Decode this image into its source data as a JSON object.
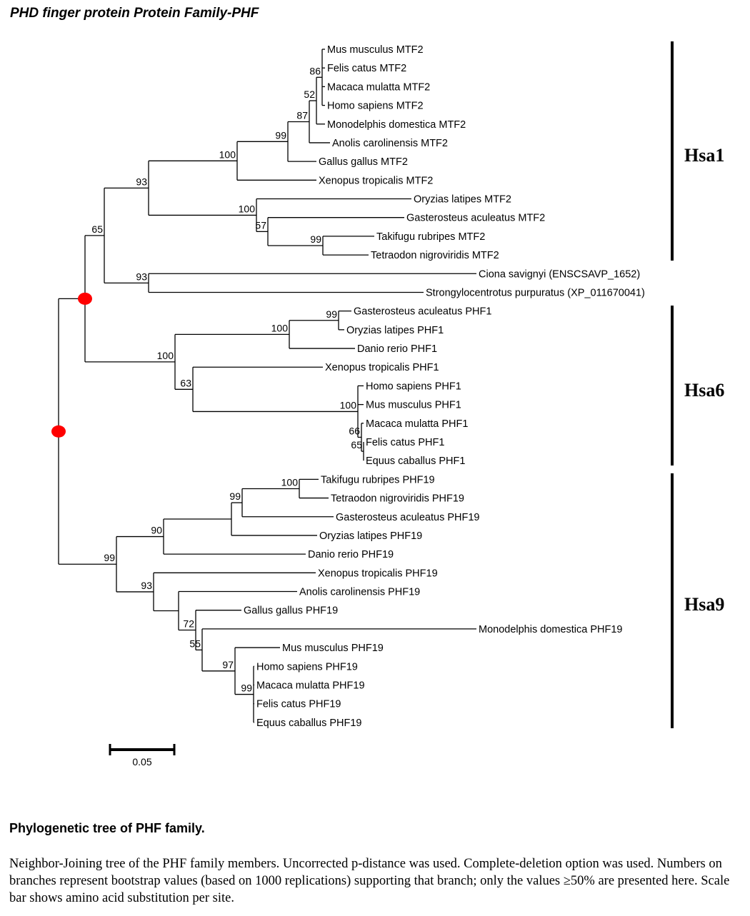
{
  "title": "PHD finger protein Protein Family-PHF",
  "tree": {
    "leaves": [
      "Mus musculus MTF2",
      "Felis catus MTF2",
      "Macaca mulatta MTF2",
      "Homo sapiens MTF2",
      "Monodelphis domestica MTF2",
      "Anolis carolinensis MTF2",
      "Gallus gallus MTF2",
      "Xenopus tropicalis MTF2",
      "Oryzias latipes MTF2",
      "Gasterosteus aculeatus MTF2",
      "Takifugu rubripes MTF2",
      "Tetraodon nigroviridis MTF2",
      "Ciona savignyi (ENSCSAVP_1652)",
      "Strongylocentrotus purpuratus (XP_011670041)",
      "Gasterosteus aculeatus PHF1",
      "Oryzias latipes PHF1",
      "Danio rerio PHF1",
      "Xenopus tropicalis PHF1",
      "Homo sapiens PHF1",
      "Mus musculus PHF1",
      "Macaca mulatta PHF1",
      "Felis catus PHF1",
      "Equus caballus PHF1",
      "Takifugu rubripes PHF19",
      "Tetraodon nigroviridis PHF19",
      "Gasterosteus aculeatus PHF19",
      "Oryzias latipes PHF19",
      "Danio rerio PHF19",
      "Xenopus tropicalis PHF19",
      "Anolis carolinensis PHF19",
      "Gallus gallus PHF19",
      "Monodelphis domestica PHF19",
      "Mus musculus PHF19",
      "Homo sapiens PHF19",
      "Macaca mulatta PHF19",
      "Felis catus PHF19",
      "Equus caballus PHF19"
    ],
    "bootstrap_values": [
      "86",
      "52",
      "87",
      "99",
      "100",
      "93",
      "100",
      "57",
      "99",
      "65",
      "93",
      "99",
      "100",
      "100",
      "63",
      "100",
      "66",
      "65",
      "100",
      "99",
      "90",
      "99",
      "93",
      "72",
      "55",
      "97",
      "99"
    ],
    "groups": [
      "Hsa1",
      "Hsa6",
      "Hsa9"
    ],
    "scale_bar_label": "0.05",
    "node_marker_color": "#ff0000"
  },
  "caption": {
    "title": "Phylogenetic tree of PHF family.",
    "text": "Neighbor-Joining tree of the PHF family members. Uncorrected p-distance was used. Complete-deletion option was used. Numbers on branches represent bootstrap values (based on 1000 replications) supporting that branch; only the values ≥50% are presented here. Scale bar shows amino acid substitution per site."
  }
}
